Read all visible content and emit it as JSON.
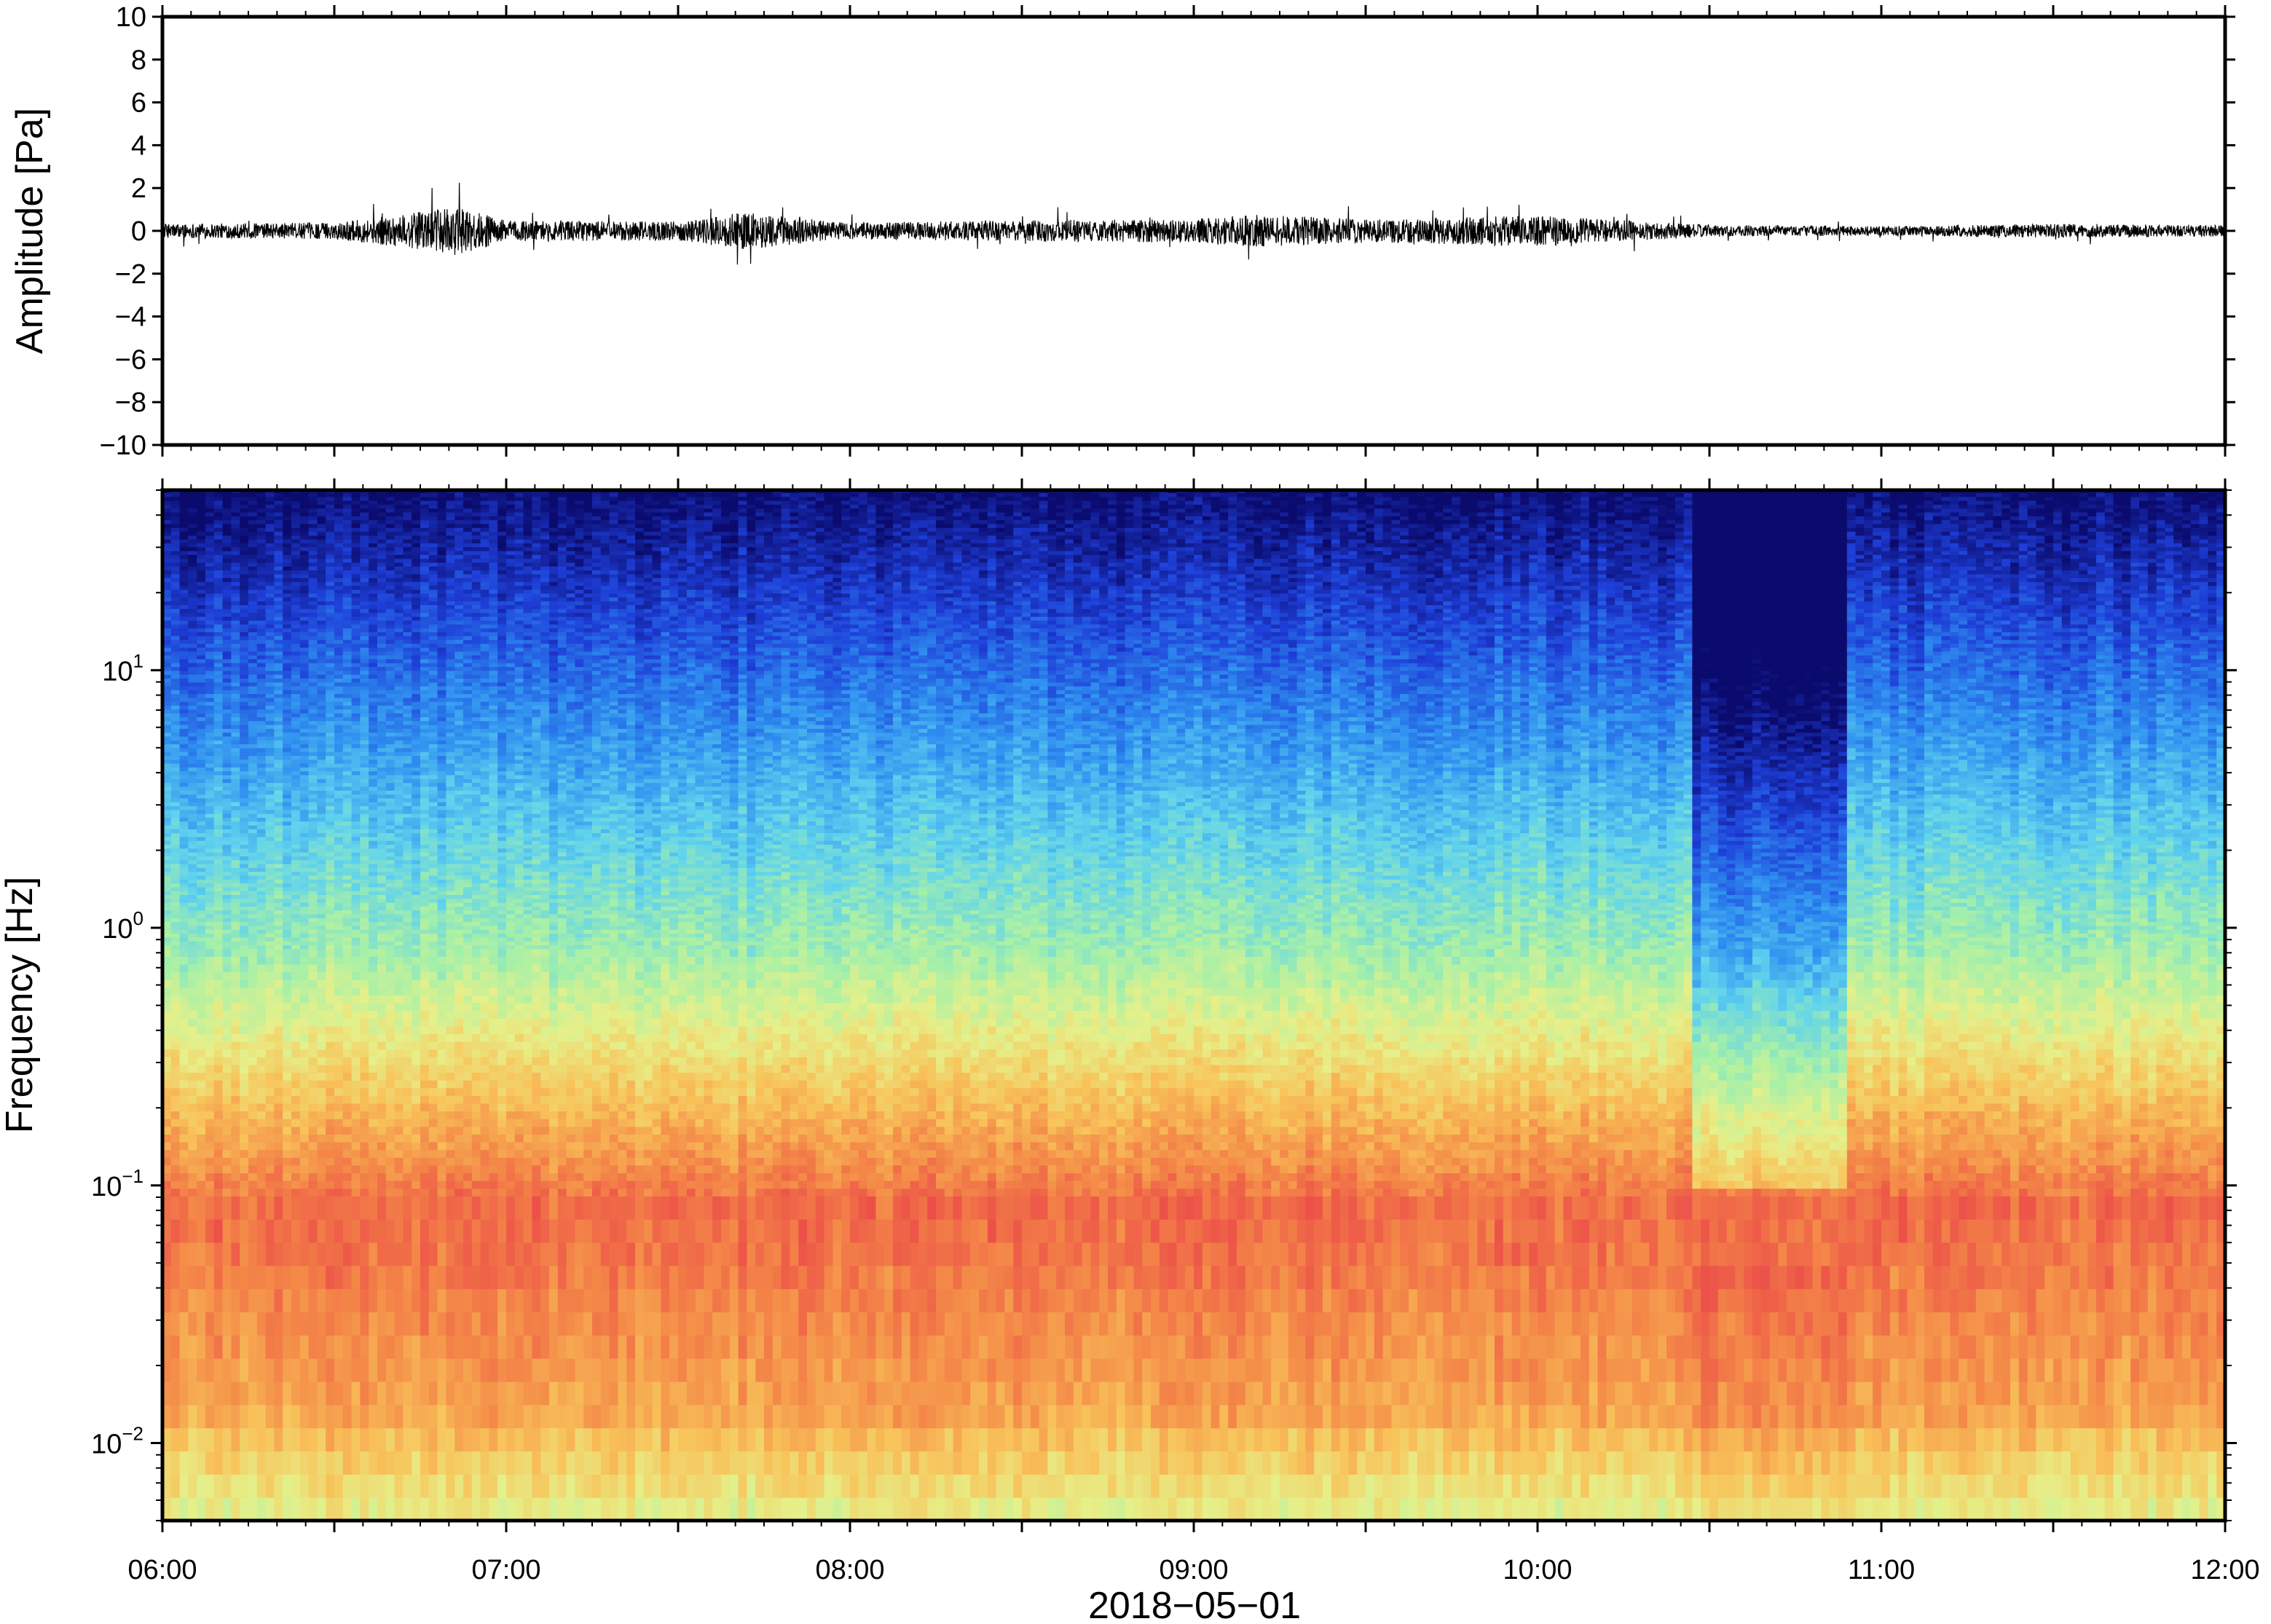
{
  "chart_data": [
    {
      "type": "line",
      "panel": "waveform",
      "ylabel": "Amplitude [Pa]",
      "ylim": [
        -10,
        10
      ],
      "yticks": [
        10,
        8,
        6,
        4,
        2,
        0,
        -2,
        -4,
        -6,
        -8,
        -10
      ],
      "ytick_labels": [
        "10",
        "8",
        "6",
        "4",
        "2",
        "0",
        "−2",
        "−4",
        "−6",
        "−8",
        "−10"
      ],
      "xlim": [
        "06:00",
        "12:00"
      ],
      "grid": false,
      "series": [
        {
          "values_note_free": true,
          "x": [
            "06:00",
            "06:30",
            "06:52",
            "07:00",
            "07:30",
            "07:41",
            "08:00",
            "08:30",
            "09:00",
            "09:10",
            "09:30",
            "10:00",
            "10:30",
            "11:00",
            "11:30",
            "12:00"
          ],
          "envelope": [
            0.6,
            0.7,
            2.0,
            0.9,
            0.8,
            1.6,
            0.7,
            0.9,
            1.0,
            1.4,
            1.0,
            1.3,
            0.5,
            0.4,
            0.6,
            0.5
          ]
        }
      ]
    },
    {
      "type": "heatmap",
      "panel": "spectrogram",
      "ylabel": "Frequency [Hz]",
      "xlabel": "2018−05−01",
      "yscale": "log",
      "ylim": [
        0.005,
        50
      ],
      "yticks": [
        {
          "base": "10",
          "exp": "1",
          "value": 10
        },
        {
          "base": "10",
          "exp": "0",
          "value": 1
        },
        {
          "base": "10",
          "exp": "−1",
          "value": 0.1
        },
        {
          "base": "10",
          "exp": "−2",
          "value": 0.01
        }
      ],
      "xlim": [
        "06:00",
        "12:00"
      ],
      "xticks": [
        "06:00",
        "07:00",
        "08:00",
        "09:00",
        "10:00",
        "11:00",
        "12:00"
      ],
      "colormap": [
        "#0b0b6e",
        "#1e3fd8",
        "#2f8ff0",
        "#5fd2ee",
        "#a6f0a8",
        "#e6f08a",
        "#f8c35a",
        "#f48a48",
        "#ec5048",
        "#f37b8c"
      ],
      "grid": false
    }
  ]
}
